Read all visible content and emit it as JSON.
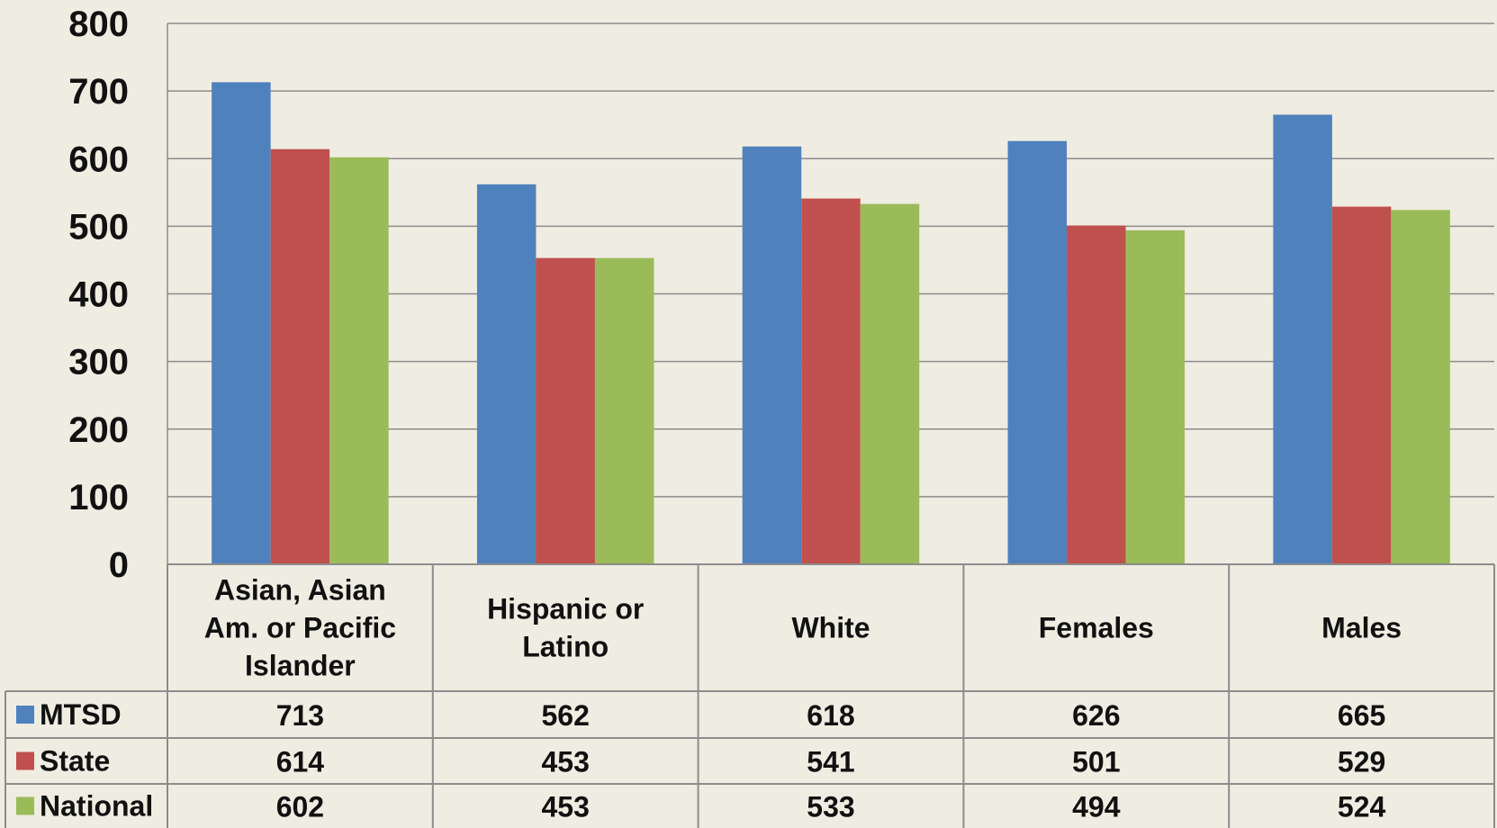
{
  "chart_data": {
    "type": "bar",
    "title": "",
    "xlabel": "",
    "ylabel": "",
    "ylim": [
      0,
      800
    ],
    "yticks": [
      "0",
      "100",
      "200",
      "300",
      "400",
      "500",
      "600",
      "700",
      "800"
    ],
    "grid": true,
    "legend": "data-table-left",
    "categories": [
      [
        "Asian, Asian",
        "Am. or Pacific",
        "Islander"
      ],
      [
        "Hispanic or",
        "Latino"
      ],
      [
        "White"
      ],
      [
        "Females"
      ],
      [
        "Males"
      ]
    ],
    "series": [
      {
        "name": "MTSD",
        "color": "#4f81bd",
        "values": [
          713,
          562,
          618,
          626,
          665
        ]
      },
      {
        "name": "State",
        "color": "#c0504d",
        "values": [
          614,
          453,
          541,
          501,
          529
        ]
      },
      {
        "name": "National",
        "color": "#9bbb59",
        "values": [
          602,
          453,
          533,
          494,
          524
        ]
      }
    ]
  }
}
